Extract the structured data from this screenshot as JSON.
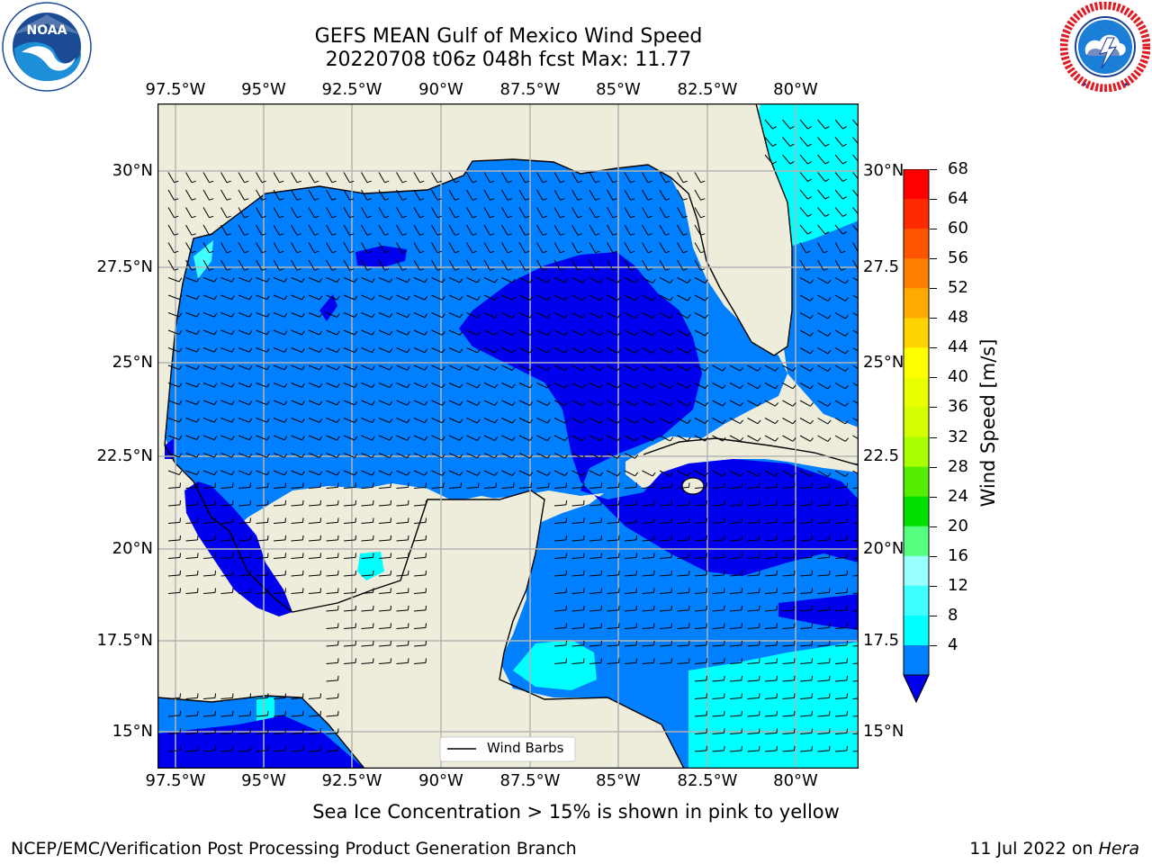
{
  "header": {
    "title_line1": "GEFS MEAN Gulf of Mexico Wind Speed",
    "title_line2": "20220708 t06z 048h fcst   Max: 11.77"
  },
  "logos": {
    "noaa_text": "NOAA",
    "noaa_ring_text": "NATIONAL OCEANIC AND ATMOSPHERIC ADMINISTRATION · U.S. DEPARTMENT OF COMMERCE",
    "nws_ring_text": "NATIONAL WEATHER SERVICE"
  },
  "map": {
    "lon_labels": [
      "97.5°W",
      "95°W",
      "92.5°W",
      "90°W",
      "87.5°W",
      "85°W",
      "82.5°W",
      "80°W"
    ],
    "lat_labels_left": [
      "30°N",
      "27.5°N",
      "25°N",
      "22.5°N",
      "20°N",
      "17.5°N",
      "15°N"
    ],
    "lat_labels_right": [
      "30°N",
      "27.5",
      "25°N",
      "22.5",
      "20°N",
      "17.5",
      "15°N"
    ],
    "legend_label": "Wind Barbs",
    "colors": {
      "land": "#eeecdb",
      "speed_lt4": "#0000ee",
      "speed_4_8": "#0080ff",
      "speed_8_12": "#00ffff",
      "speed_12_16": "#40ffff",
      "coast": "#000000",
      "grid": "#b4b4b4"
    }
  },
  "colorbar": {
    "label": "Wind Speed [m/s]",
    "ticks": [
      "68",
      "64",
      "60",
      "56",
      "52",
      "48",
      "44",
      "40",
      "36",
      "32",
      "28",
      "24",
      "20",
      "16",
      "12",
      "8",
      "4"
    ],
    "colors": [
      "#ff0000",
      "#ff2a00",
      "#ff5500",
      "#ff7f00",
      "#ffaa00",
      "#ffd400",
      "#ffff00",
      "#eaff00",
      "#d4ff00",
      "#aaff00",
      "#55ee00",
      "#00e000",
      "#55ff80",
      "#9affff",
      "#40ffff",
      "#00ffff",
      "#0080ff"
    ],
    "under_color": "#0000ee"
  },
  "sea_ice_note": "Sea Ice Concentration > 15% is shown in pink to yellow",
  "footer": {
    "left": "NCEP/EMC/Verification Post Processing Product Generation Branch",
    "right_prefix": "11 Jul 2022 on ",
    "right_host": "Hera"
  }
}
